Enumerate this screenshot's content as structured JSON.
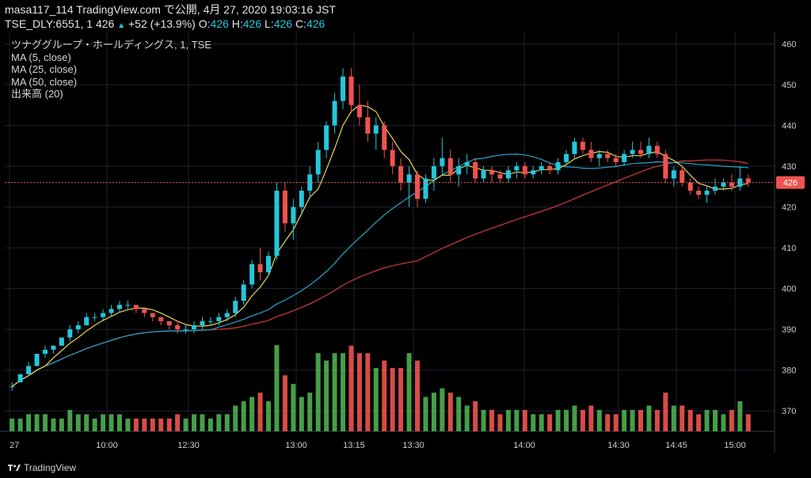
{
  "header": {
    "snapshot_title": "masa117_114 TradingView.com で公開, 4月 27, 2020 19:03:16 JST",
    "symbol": "TSE_DLY:6551, 1",
    "last_price": "426",
    "change": "+52 (+13.9%)",
    "ohlc": [
      {
        "label": "O:",
        "value": "426"
      },
      {
        "label": "H:",
        "value": "426"
      },
      {
        "label": "L:",
        "value": "426"
      },
      {
        "label": "C:",
        "value": "426"
      }
    ]
  },
  "legend": {
    "instrument": "ツナググループ・ホールディングス, 1, TSE",
    "ma5": "MA (5, close)",
    "ma25": "MA (25, close)",
    "ma50": "MA (50, close)",
    "volume": "出来高 (20)"
  },
  "footer": {
    "brand": "TradingView"
  },
  "colors": {
    "background": "#000000",
    "up": "#26c6da",
    "down": "#ef5350",
    "ma5": "#e6d35a",
    "ma25": "#26a6c6",
    "ma50": "#d33a3a",
    "vol_up": "#4caf50",
    "vol_down": "#ef5350",
    "grid": "#1e222d",
    "price_tag": "#ef5350"
  },
  "chart_data": {
    "type": "candlestick",
    "timeframe": "1 minute",
    "y_range": [
      365,
      463
    ],
    "y_ticks": [
      370,
      380,
      390,
      400,
      410,
      420,
      430,
      440,
      450,
      460
    ],
    "x_tick_labels": [
      "27",
      "10:00",
      "12:30",
      "13:00",
      "13:15",
      "13:30",
      "14:00",
      "14:30",
      "14:45",
      "15:00"
    ],
    "current_price": 426,
    "grid": true,
    "candles_ohlc": [
      [
        376,
        377,
        375,
        376
      ],
      [
        377,
        379,
        377,
        379
      ],
      [
        379,
        382,
        379,
        381
      ],
      [
        381,
        384,
        381,
        384
      ],
      [
        384,
        386,
        383,
        385
      ],
      [
        385,
        386,
        384,
        386
      ],
      [
        386,
        388,
        386,
        388
      ],
      [
        388,
        391,
        387,
        390
      ],
      [
        390,
        392,
        389,
        391
      ],
      [
        391,
        394,
        391,
        393
      ],
      [
        393,
        394,
        392,
        393
      ],
      [
        393,
        395,
        392,
        394
      ],
      [
        394,
        396,
        393,
        395
      ],
      [
        395,
        397,
        394,
        396
      ],
      [
        396,
        397,
        395,
        396
      ],
      [
        396,
        396,
        394,
        395
      ],
      [
        395,
        395,
        393,
        394
      ],
      [
        394,
        394,
        392,
        393
      ],
      [
        393,
        393,
        391,
        392
      ],
      [
        392,
        392,
        390,
        391
      ],
      [
        391,
        392,
        389,
        390
      ],
      [
        390,
        391,
        389,
        390
      ],
      [
        390,
        392,
        389,
        391
      ],
      [
        391,
        393,
        390,
        392
      ],
      [
        392,
        393,
        391,
        392
      ],
      [
        392,
        394,
        391,
        393
      ],
      [
        393,
        395,
        392,
        394
      ],
      [
        394,
        398,
        393,
        397
      ],
      [
        397,
        402,
        396,
        401
      ],
      [
        401,
        407,
        400,
        406
      ],
      [
        406,
        410,
        402,
        404
      ],
      [
        404,
        409,
        403,
        408
      ],
      [
        408,
        426,
        407,
        424
      ],
      [
        424,
        426,
        414,
        416
      ],
      [
        416,
        422,
        412,
        420
      ],
      [
        420,
        425,
        418,
        424
      ],
      [
        424,
        430,
        422,
        428
      ],
      [
        428,
        436,
        426,
        434
      ],
      [
        434,
        441,
        432,
        440
      ],
      [
        440,
        448,
        438,
        446
      ],
      [
        446,
        454,
        444,
        452
      ],
      [
        452,
        454,
        443,
        445
      ],
      [
        445,
        450,
        440,
        442
      ],
      [
        442,
        446,
        436,
        438
      ],
      [
        438,
        442,
        434,
        440
      ],
      [
        440,
        441,
        432,
        434
      ],
      [
        434,
        436,
        428,
        430
      ],
      [
        430,
        432,
        424,
        426
      ],
      [
        426,
        430,
        420,
        428
      ],
      [
        428,
        429,
        420,
        422
      ],
      [
        422,
        428,
        421,
        427
      ],
      [
        427,
        432,
        424,
        430
      ],
      [
        430,
        437,
        428,
        432
      ],
      [
        432,
        434,
        426,
        428
      ],
      [
        428,
        432,
        425,
        430
      ],
      [
        430,
        433,
        428,
        431
      ],
      [
        431,
        432,
        426,
        427
      ],
      [
        427,
        430,
        426,
        429
      ],
      [
        429,
        430,
        426,
        428
      ],
      [
        428,
        429,
        426,
        427
      ],
      [
        427,
        430,
        426,
        429
      ],
      [
        429,
        431,
        427,
        430
      ],
      [
        430,
        431,
        427,
        428
      ],
      [
        428,
        430,
        427,
        429
      ],
      [
        429,
        431,
        428,
        430
      ],
      [
        430,
        431,
        428,
        429
      ],
      [
        429,
        432,
        428,
        431
      ],
      [
        431,
        434,
        430,
        433
      ],
      [
        433,
        437,
        432,
        436
      ],
      [
        436,
        437,
        433,
        434
      ],
      [
        434,
        436,
        431,
        432
      ],
      [
        432,
        434,
        430,
        433
      ],
      [
        433,
        434,
        431,
        432
      ],
      [
        432,
        433,
        430,
        431
      ],
      [
        431,
        434,
        430,
        433
      ],
      [
        433,
        436,
        432,
        434
      ],
      [
        434,
        436,
        432,
        433
      ],
      [
        433,
        437,
        432,
        435
      ],
      [
        435,
        436,
        432,
        433
      ],
      [
        433,
        434,
        426,
        427
      ],
      [
        427,
        430,
        425,
        429
      ],
      [
        429,
        430,
        425,
        426
      ],
      [
        426,
        427,
        423,
        424
      ],
      [
        424,
        425,
        422,
        423
      ],
      [
        423,
        425,
        421,
        424
      ],
      [
        424,
        427,
        423,
        425
      ],
      [
        425,
        427,
        424,
        426
      ],
      [
        426,
        428,
        424,
        425
      ],
      [
        425,
        430,
        424,
        427
      ],
      [
        427,
        428,
        425,
        426
      ]
    ],
    "volume_range": [
      0,
      100
    ]
  }
}
